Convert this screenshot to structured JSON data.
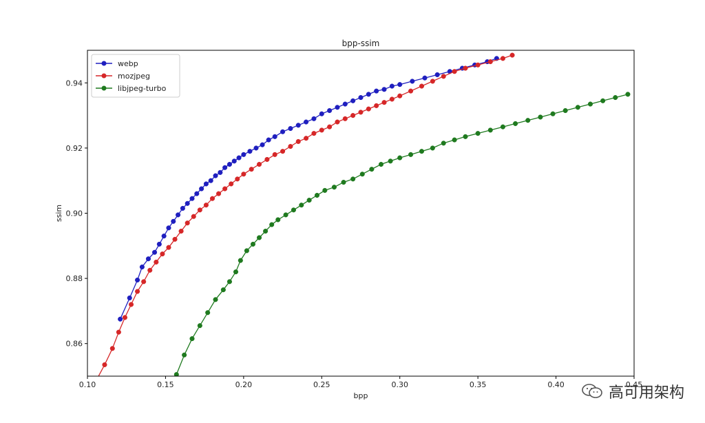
{
  "chart_data": {
    "type": "line",
    "title": "bpp-ssim",
    "xlabel": "bpp",
    "ylabel": "ssim",
    "xlim": [
      0.1,
      0.45
    ],
    "ylim": [
      0.85,
      0.95
    ],
    "xticks": [
      "0.10",
      "0.15",
      "0.20",
      "0.25",
      "0.30",
      "0.35",
      "0.40",
      "0.45"
    ],
    "yticks": [
      "0.86",
      "0.88",
      "0.90",
      "0.92",
      "0.94"
    ],
    "legend": "top-left",
    "grid": false,
    "series": [
      {
        "name": "webp",
        "color": "#1f1fbf",
        "points": [
          [
            0.121,
            0.8675
          ],
          [
            0.127,
            0.874
          ],
          [
            0.132,
            0.8795
          ],
          [
            0.135,
            0.8835
          ],
          [
            0.139,
            0.886
          ],
          [
            0.143,
            0.888
          ],
          [
            0.146,
            0.8905
          ],
          [
            0.149,
            0.893
          ],
          [
            0.152,
            0.8955
          ],
          [
            0.155,
            0.8975
          ],
          [
            0.158,
            0.8995
          ],
          [
            0.161,
            0.9015
          ],
          [
            0.164,
            0.903
          ],
          [
            0.167,
            0.9045
          ],
          [
            0.17,
            0.906
          ],
          [
            0.173,
            0.9075
          ],
          [
            0.176,
            0.909
          ],
          [
            0.179,
            0.91
          ],
          [
            0.182,
            0.9115
          ],
          [
            0.185,
            0.9125
          ],
          [
            0.188,
            0.914
          ],
          [
            0.191,
            0.915
          ],
          [
            0.194,
            0.916
          ],
          [
            0.197,
            0.917
          ],
          [
            0.2,
            0.918
          ],
          [
            0.204,
            0.919
          ],
          [
            0.208,
            0.92
          ],
          [
            0.212,
            0.921
          ],
          [
            0.216,
            0.9225
          ],
          [
            0.22,
            0.9235
          ],
          [
            0.225,
            0.925
          ],
          [
            0.23,
            0.926
          ],
          [
            0.235,
            0.927
          ],
          [
            0.24,
            0.928
          ],
          [
            0.245,
            0.929
          ],
          [
            0.25,
            0.9305
          ],
          [
            0.255,
            0.9315
          ],
          [
            0.26,
            0.9325
          ],
          [
            0.265,
            0.9335
          ],
          [
            0.27,
            0.9345
          ],
          [
            0.275,
            0.9355
          ],
          [
            0.28,
            0.9365
          ],
          [
            0.285,
            0.9375
          ],
          [
            0.29,
            0.938
          ],
          [
            0.295,
            0.939
          ],
          [
            0.3,
            0.9395
          ],
          [
            0.308,
            0.9405
          ],
          [
            0.316,
            0.9415
          ],
          [
            0.324,
            0.9425
          ],
          [
            0.332,
            0.9435
          ],
          [
            0.34,
            0.9445
          ],
          [
            0.348,
            0.9455
          ],
          [
            0.356,
            0.9465
          ],
          [
            0.362,
            0.9475
          ]
        ]
      },
      {
        "name": "mozjpeg",
        "color": "#d62728",
        "points": [
          [
            0.106,
            0.849
          ],
          [
            0.111,
            0.8535
          ],
          [
            0.116,
            0.8585
          ],
          [
            0.12,
            0.8635
          ],
          [
            0.124,
            0.868
          ],
          [
            0.128,
            0.872
          ],
          [
            0.132,
            0.876
          ],
          [
            0.136,
            0.879
          ],
          [
            0.14,
            0.8825
          ],
          [
            0.144,
            0.885
          ],
          [
            0.148,
            0.8875
          ],
          [
            0.152,
            0.8895
          ],
          [
            0.156,
            0.892
          ],
          [
            0.16,
            0.8945
          ],
          [
            0.164,
            0.897
          ],
          [
            0.168,
            0.899
          ],
          [
            0.172,
            0.901
          ],
          [
            0.176,
            0.9025
          ],
          [
            0.18,
            0.9045
          ],
          [
            0.184,
            0.906
          ],
          [
            0.188,
            0.9075
          ],
          [
            0.192,
            0.909
          ],
          [
            0.196,
            0.9105
          ],
          [
            0.2,
            0.912
          ],
          [
            0.205,
            0.9135
          ],
          [
            0.21,
            0.915
          ],
          [
            0.215,
            0.9165
          ],
          [
            0.22,
            0.918
          ],
          [
            0.225,
            0.919
          ],
          [
            0.23,
            0.9205
          ],
          [
            0.235,
            0.922
          ],
          [
            0.24,
            0.923
          ],
          [
            0.245,
            0.9245
          ],
          [
            0.25,
            0.9255
          ],
          [
            0.255,
            0.9265
          ],
          [
            0.26,
            0.928
          ],
          [
            0.265,
            0.929
          ],
          [
            0.27,
            0.93
          ],
          [
            0.275,
            0.931
          ],
          [
            0.28,
            0.932
          ],
          [
            0.285,
            0.933
          ],
          [
            0.29,
            0.934
          ],
          [
            0.295,
            0.935
          ],
          [
            0.3,
            0.936
          ],
          [
            0.307,
            0.9375
          ],
          [
            0.314,
            0.939
          ],
          [
            0.321,
            0.9405
          ],
          [
            0.328,
            0.942
          ],
          [
            0.335,
            0.9435
          ],
          [
            0.342,
            0.9445
          ],
          [
            0.35,
            0.9455
          ],
          [
            0.358,
            0.9465
          ],
          [
            0.366,
            0.9475
          ],
          [
            0.372,
            0.9485
          ]
        ]
      },
      {
        "name": "libjpeg-turbo",
        "color": "#1f7a1f",
        "points": [
          [
            0.157,
            0.8505
          ],
          [
            0.162,
            0.8565
          ],
          [
            0.167,
            0.8615
          ],
          [
            0.172,
            0.8655
          ],
          [
            0.177,
            0.8695
          ],
          [
            0.182,
            0.8735
          ],
          [
            0.187,
            0.8765
          ],
          [
            0.191,
            0.879
          ],
          [
            0.195,
            0.882
          ],
          [
            0.198,
            0.8855
          ],
          [
            0.202,
            0.8885
          ],
          [
            0.206,
            0.8905
          ],
          [
            0.21,
            0.8925
          ],
          [
            0.214,
            0.8945
          ],
          [
            0.218,
            0.8965
          ],
          [
            0.222,
            0.898
          ],
          [
            0.227,
            0.8995
          ],
          [
            0.232,
            0.901
          ],
          [
            0.237,
            0.9025
          ],
          [
            0.242,
            0.904
          ],
          [
            0.247,
            0.9055
          ],
          [
            0.252,
            0.907
          ],
          [
            0.258,
            0.908
          ],
          [
            0.264,
            0.9095
          ],
          [
            0.27,
            0.9105
          ],
          [
            0.276,
            0.912
          ],
          [
            0.282,
            0.9135
          ],
          [
            0.288,
            0.915
          ],
          [
            0.294,
            0.916
          ],
          [
            0.3,
            0.917
          ],
          [
            0.307,
            0.918
          ],
          [
            0.314,
            0.919
          ],
          [
            0.321,
            0.92
          ],
          [
            0.328,
            0.9215
          ],
          [
            0.335,
            0.9225
          ],
          [
            0.342,
            0.9235
          ],
          [
            0.35,
            0.9245
          ],
          [
            0.358,
            0.9255
          ],
          [
            0.366,
            0.9265
          ],
          [
            0.374,
            0.9275
          ],
          [
            0.382,
            0.9285
          ],
          [
            0.39,
            0.9295
          ],
          [
            0.398,
            0.9305
          ],
          [
            0.406,
            0.9315
          ],
          [
            0.414,
            0.9325
          ],
          [
            0.422,
            0.9335
          ],
          [
            0.43,
            0.9345
          ],
          [
            0.438,
            0.9355
          ],
          [
            0.446,
            0.9365
          ]
        ]
      }
    ]
  },
  "watermark": {
    "text": "高可用架构",
    "icon": "wechat-icon"
  }
}
